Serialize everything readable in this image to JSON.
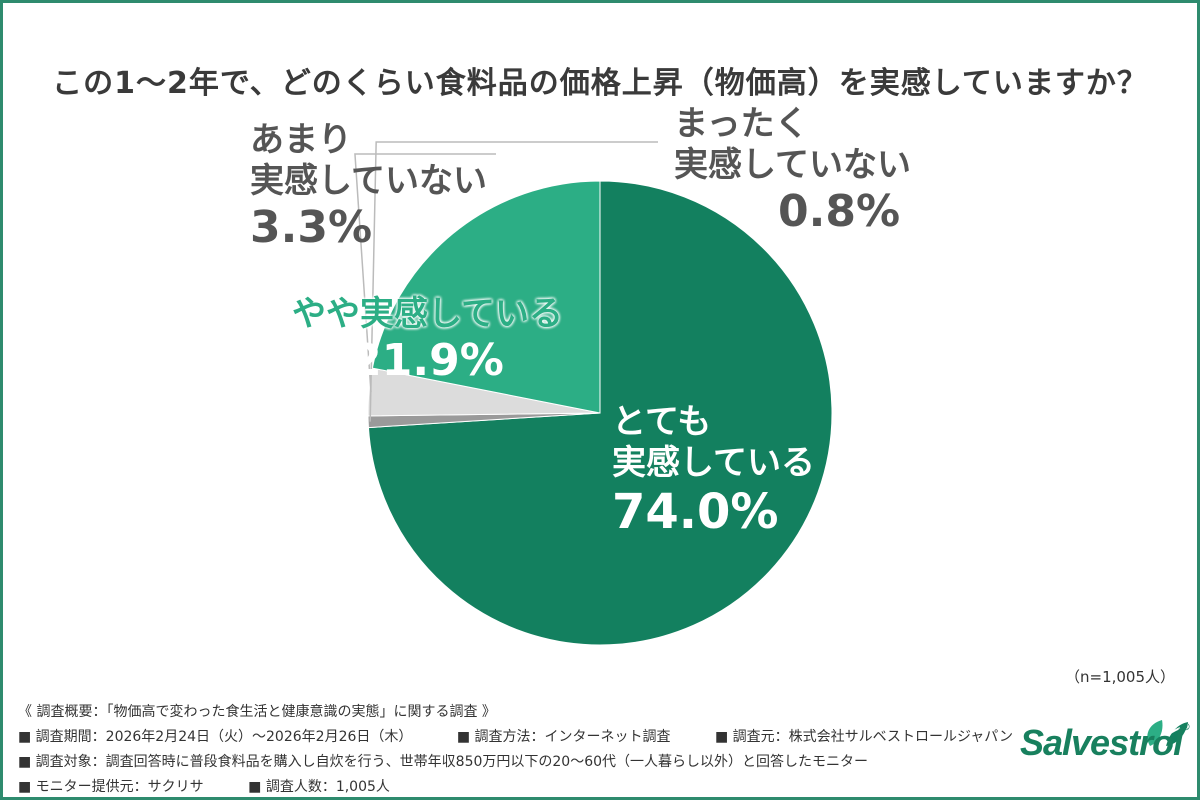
{
  "title": "この1〜2年で、どのくらい食料品の価格上昇（物価高）を実感していますか？",
  "chart_data": {
    "type": "pie",
    "title": "この1〜2年で、どのくらい食料品の価格上昇（物価高）を実感していますか？",
    "slices": [
      {
        "label_lines": [
          "とても",
          "実感している"
        ],
        "value": 74.0,
        "value_text": "74.0%",
        "color": "#13805f"
      },
      {
        "label_lines": [
          "まったく",
          "実感していない"
        ],
        "value": 0.8,
        "value_text": "0.8%",
        "color": "#9a9a9a"
      },
      {
        "label_lines": [
          "あまり",
          "実感していない"
        ],
        "value": 3.3,
        "value_text": "3.3%",
        "color": "#dcdcdc"
      },
      {
        "label_lines": [
          "やや実感している"
        ],
        "value": 21.9,
        "value_text": "21.9%",
        "color": "#2cae85"
      }
    ],
    "sample_note": "（n=1,005人）"
  },
  "notes": {
    "survey_title": "《 調査概要：「物価高で変わった食生活と健康意識の実態」に関する調査 》",
    "period": "■ 調査期間：2026年2月24日（火）〜2026年2月26日（木）",
    "method": "■ 調査方法：インターネット調査",
    "organizer": "■ 調査元：株式会社サルベストロールジャパン",
    "target": "■ 調査対象：調査回答時に普段食料品を購入し自炊を行う、世帯年収850万円以下の20〜60代（一人暮らし以外）と回答したモニター",
    "provider": "■ モニター提供元：サクリサ",
    "count": "■ 調査人数：1,005人"
  },
  "logo": {
    "text": "Salvestrol",
    "reg": "®"
  }
}
